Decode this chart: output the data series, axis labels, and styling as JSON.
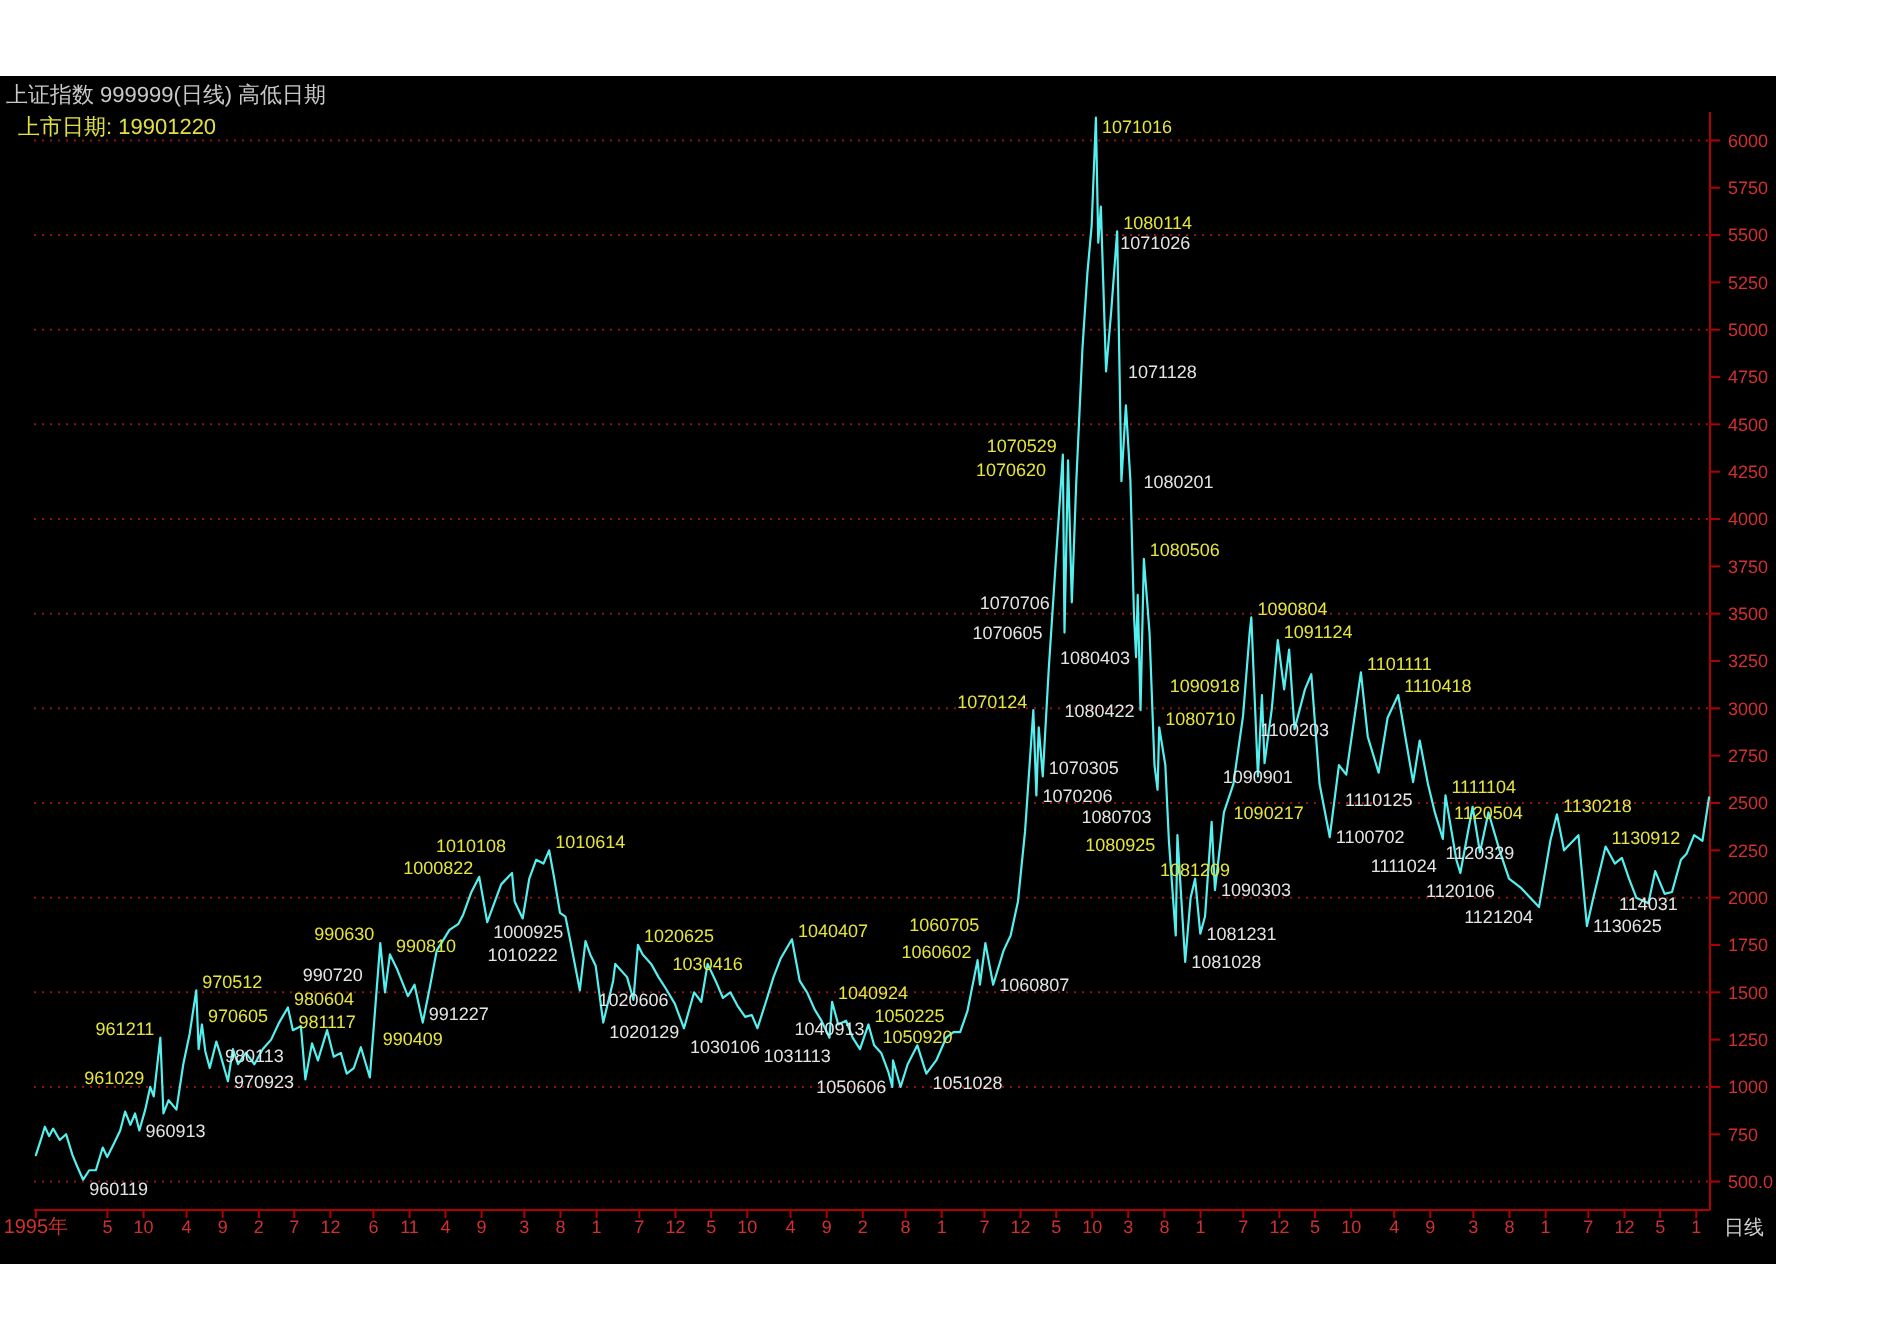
{
  "chart_data": {
    "type": "line",
    "title": "上证指数 999999(日线) 高低日期",
    "subtitle": "上市日期: 19901220",
    "x": [
      "1995-07-03",
      "1995-07-24",
      "1995-08-10",
      "1995-08-28",
      "1995-09-14",
      "1995-10-12",
      "1995-11-08",
      "1995-12-05",
      "1995-12-25",
      "1996-01-19",
      "1996-02-14",
      "1996-03-13",
      "1996-04-11",
      "1996-04-30",
      "1996-05-28",
      "1996-06-24",
      "1996-07-15",
      "1996-08-06",
      "1996-08-26",
      "1996-09-13",
      "1996-10-08",
      "1996-10-29",
      "1996-11-13",
      "1996-12-11",
      "1996-12-24",
      "1997-01-15",
      "1997-02-17",
      "1997-03-18",
      "1997-04-14",
      "1997-05-12",
      "1997-05-22",
      "1997-06-05",
      "1997-06-19",
      "1997-07-08",
      "1997-08-05",
      "1997-08-20",
      "1997-09-23",
      "1997-10-14",
      "1997-11-05",
      "1997-12-08",
      "1998-01-13",
      "1998-02-18",
      "1998-03-25",
      "1998-04-28",
      "1998-06-04",
      "1998-06-25",
      "1998-07-29",
      "1998-08-17",
      "1998-09-14",
      "1998-10-09",
      "1998-11-17",
      "1998-12-15",
      "1999-01-14",
      "1999-02-08",
      "1999-03-10",
      "1999-04-09",
      "1999-05-17",
      "1999-06-30",
      "1999-07-20",
      "1999-08-10",
      "1999-09-10",
      "1999-10-25",
      "1999-11-22",
      "1999-12-27",
      "2000-01-25",
      "2000-02-24",
      "2000-03-20",
      "2000-04-18",
      "2000-05-25",
      "2000-06-15",
      "2000-07-20",
      "2000-08-22",
      "2000-09-25",
      "2000-11-23",
      "2001-01-08",
      "2001-01-19",
      "2001-02-22",
      "2001-03-22",
      "2001-04-20",
      "2001-05-21",
      "2001-06-14",
      "2001-07-06",
      "2001-07-30",
      "2001-08-22",
      "2001-09-12",
      "2001-10-22",
      "2001-11-15",
      "2001-12-05",
      "2001-12-28",
      "2002-01-29",
      "2002-03-12",
      "2002-03-21",
      "2002-05-10",
      "2002-06-06",
      "2002-06-25",
      "2002-07-15",
      "2002-08-20",
      "2002-09-20",
      "2002-10-21",
      "2002-11-28",
      "2003-01-06",
      "2003-02-18",
      "2003-03-20",
      "2003-04-16",
      "2003-05-20",
      "2003-06-20",
      "2003-07-21",
      "2003-08-20",
      "2003-09-22",
      "2003-10-20",
      "2003-11-13",
      "2003-12-19",
      "2004-01-20",
      "2004-02-20",
      "2004-04-07",
      "2004-05-10",
      "2004-06-10",
      "2004-07-12",
      "2004-08-10",
      "2004-09-13",
      "2004-09-24",
      "2004-10-20",
      "2004-11-22",
      "2004-12-20",
      "2005-01-20",
      "2005-02-25",
      "2005-03-21",
      "2005-04-20",
      "2005-05-20",
      "2005-06-06",
      "2005-06-09",
      "2005-07-11",
      "2005-08-10",
      "2005-09-20",
      "2005-10-28",
      "2005-12-09",
      "2006-01-20",
      "2006-02-20",
      "2006-03-20",
      "2006-04-20",
      "2006-06-02",
      "2006-06-12",
      "2006-07-05",
      "2006-08-07",
      "2006-09-20",
      "2006-10-20",
      "2006-11-20",
      "2006-12-20",
      "2007-01-24",
      "2007-02-06",
      "2007-02-16",
      "2007-03-05",
      "2007-03-30",
      "2007-04-20",
      "2007-05-29",
      "2007-06-05",
      "2007-06-20",
      "2007-07-06",
      "2007-07-25",
      "2007-08-20",
      "2007-09-10",
      "2007-09-28",
      "2007-10-16",
      "2007-10-26",
      "2007-11-06",
      "2007-11-28",
      "2007-12-20",
      "2008-01-14",
      "2008-02-01",
      "2008-02-20",
      "2008-03-10",
      "2008-03-25",
      "2008-04-03",
      "2008-04-10",
      "2008-04-22",
      "2008-05-06",
      "2008-05-30",
      "2008-06-20",
      "2008-07-03",
      "2008-07-10",
      "2008-08-05",
      "2008-08-20",
      "2008-09-18",
      "2008-09-25",
      "2008-10-28",
      "2008-11-20",
      "2008-12-09",
      "2008-12-31",
      "2009-01-20",
      "2009-02-17",
      "2009-03-03",
      "2009-04-10",
      "2009-05-20",
      "2009-06-30",
      "2009-07-28",
      "2009-08-04",
      "2009-09-01",
      "2009-09-18",
      "2009-09-29",
      "2009-10-30",
      "2009-11-24",
      "2009-12-21",
      "2010-01-11",
      "2010-02-03",
      "2010-03-19",
      "2010-04-15",
      "2010-05-20",
      "2010-07-02",
      "2010-08-10",
      "2010-09-10",
      "2010-11-11",
      "2010-12-10",
      "2011-01-25",
      "2011-03-04",
      "2011-04-18",
      "2011-06-20",
      "2011-07-18",
      "2011-08-22",
      "2011-09-20",
      "2011-10-24",
      "2011-11-04",
      "2011-12-20",
      "2012-01-06",
      "2012-02-27",
      "2012-03-29",
      "2012-05-04",
      "2012-06-20",
      "2012-07-30",
      "2012-09-20",
      "2012-12-04",
      "2013-01-21",
      "2013-02-18",
      "2013-03-20",
      "2013-05-20",
      "2013-06-25",
      "2013-07-22",
      "2013-09-12",
      "2013-10-21",
      "2013-11-20",
      "2013-12-20",
      "2014-01-20",
      "2014-03-12",
      "2014-04-10",
      "2014-05-20",
      "2014-06-20",
      "2014-07-28",
      "2014-08-20",
      "2014-09-22",
      "2014-10-27",
      "2014-11-24"
    ],
    "series": [
      {
        "color": "#54f0f0",
        "values": [
          640,
          720,
          790,
          740,
          780,
          720,
          750,
          640,
          580,
          510,
          560,
          560,
          680,
          630,
          700,
          770,
          870,
          800,
          860,
          770,
          880,
          1000,
          950,
          1260,
          860,
          930,
          880,
          1120,
          1280,
          1510,
          1200,
          1330,
          1190,
          1100,
          1240,
          1180,
          1030,
          1200,
          1120,
          1180,
          1120,
          1200,
          1250,
          1340,
          1420,
          1300,
          1320,
          1040,
          1230,
          1140,
          1300,
          1160,
          1180,
          1070,
          1100,
          1210,
          1050,
          1760,
          1500,
          1700,
          1620,
          1480,
          1540,
          1340,
          1520,
          1720,
          1770,
          1830,
          1860,
          1910,
          2030,
          2110,
          1870,
          2070,
          2130,
          1980,
          1890,
          2100,
          2200,
          2180,
          2250,
          2100,
          1920,
          1900,
          1770,
          1510,
          1770,
          1700,
          1640,
          1340,
          1560,
          1650,
          1580,
          1460,
          1750,
          1700,
          1650,
          1580,
          1520,
          1440,
          1310,
          1500,
          1450,
          1650,
          1560,
          1470,
          1500,
          1430,
          1370,
          1380,
          1310,
          1450,
          1580,
          1680,
          1780,
          1560,
          1500,
          1410,
          1350,
          1260,
          1450,
          1330,
          1350,
          1260,
          1200,
          1330,
          1220,
          1180,
          1080,
          1000,
          1140,
          1000,
          1120,
          1220,
          1070,
          1140,
          1260,
          1290,
          1290,
          1400,
          1670,
          1540,
          1760,
          1540,
          1720,
          1800,
          1980,
          2350,
          2990,
          2540,
          2900,
          2640,
          3200,
          3600,
          4340,
          3400,
          4310,
          3560,
          4200,
          4900,
          5300,
          5550,
          6120,
          5460,
          5650,
          4780,
          5100,
          5520,
          4200,
          4600,
          4200,
          3500,
          3270,
          3600,
          2990,
          3790,
          3400,
          2700,
          2570,
          2900,
          2700,
          2300,
          1800,
          2330,
          1660,
          2000,
          2100,
          1810,
          1900,
          2400,
          2040,
          2450,
          2600,
          2960,
          3400,
          3480,
          2640,
          3070,
          2710,
          3000,
          3360,
          3100,
          3310,
          2890,
          3100,
          3180,
          2600,
          2320,
          2700,
          2650,
          3190,
          2850,
          2660,
          2950,
          3070,
          2610,
          2830,
          2600,
          2450,
          2310,
          2540,
          2200,
          2130,
          2480,
          2240,
          2450,
          2250,
          2100,
          2050,
          1950,
          2300,
          2440,
          2250,
          2330,
          1850,
          2000,
          2270,
          2180,
          2210,
          2100,
          2000,
          1970,
          2140,
          2020,
          2030,
          2200,
          2230,
          2330,
          2300,
          2530
        ]
      }
    ],
    "xlim": [
      "1995-06-25",
      "2014-11-28"
    ],
    "ylim": [
      350,
      6150
    ],
    "xticks": [
      {
        "value": "1995-07-03",
        "label": "1995年"
      },
      {
        "value": "1996-05",
        "label": "5"
      },
      {
        "value": "1996-10",
        "label": "10"
      },
      {
        "value": "1997-04",
        "label": "4"
      },
      {
        "value": "1997-09",
        "label": "9"
      },
      {
        "value": "1998-02",
        "label": "2"
      },
      {
        "value": "1998-07",
        "label": "7"
      },
      {
        "value": "1998-12",
        "label": "12"
      },
      {
        "value": "1999-06",
        "label": "6"
      },
      {
        "value": "1999-11",
        "label": "11"
      },
      {
        "value": "2000-04",
        "label": "4"
      },
      {
        "value": "2000-09",
        "label": "9"
      },
      {
        "value": "2001-03",
        "label": "3"
      },
      {
        "value": "2001-08",
        "label": "8"
      },
      {
        "value": "2002-01",
        "label": "1"
      },
      {
        "value": "2002-07",
        "label": "7"
      },
      {
        "value": "2002-12",
        "label": "12"
      },
      {
        "value": "2003-05",
        "label": "5"
      },
      {
        "value": "2003-10",
        "label": "10"
      },
      {
        "value": "2004-04",
        "label": "4"
      },
      {
        "value": "2004-09",
        "label": "9"
      },
      {
        "value": "2005-02",
        "label": "2"
      },
      {
        "value": "2005-08",
        "label": "8"
      },
      {
        "value": "2006-01",
        "label": "1"
      },
      {
        "value": "2006-07",
        "label": "7"
      },
      {
        "value": "2006-12",
        "label": "12"
      },
      {
        "value": "2007-05",
        "label": "5"
      },
      {
        "value": "2007-10",
        "label": "10"
      },
      {
        "value": "2008-03",
        "label": "3"
      },
      {
        "value": "2008-08",
        "label": "8"
      },
      {
        "value": "2009-01",
        "label": "1"
      },
      {
        "value": "2009-07",
        "label": "7"
      },
      {
        "value": "2009-12",
        "label": "12"
      },
      {
        "value": "2010-05",
        "label": "5"
      },
      {
        "value": "2010-10",
        "label": "10"
      },
      {
        "value": "2011-04",
        "label": "4"
      },
      {
        "value": "2011-09",
        "label": "9"
      },
      {
        "value": "2012-03",
        "label": "3"
      },
      {
        "value": "2012-08",
        "label": "8"
      },
      {
        "value": "2013-01",
        "label": "1"
      },
      {
        "value": "2013-07",
        "label": "7"
      },
      {
        "value": "2013-12",
        "label": "12"
      },
      {
        "value": "2014-05",
        "label": "5"
      },
      {
        "value": "2014-10",
        "label": "1"
      }
    ],
    "yticks": [
      {
        "value": 500,
        "label": "500.0"
      },
      750,
      1000,
      1250,
      1500,
      1750,
      2000,
      2250,
      2500,
      2750,
      3000,
      3250,
      3500,
      3750,
      4000,
      4250,
      4500,
      4750,
      5000,
      5250,
      5500,
      5750,
      6000
    ],
    "grid": "y",
    "annotations": [
      "日线",
      {
        "text": "960119",
        "x": "1996-01-19",
        "y": 510
      },
      {
        "text": "960913",
        "x": "1996-09-13",
        "y": 770
      },
      {
        "text": "961029",
        "x": "1996-10-29",
        "y": 1000
      },
      {
        "text": "961211",
        "x": "1996-12-11",
        "y": 1260
      },
      {
        "text": "970512",
        "x": "1997-05-12",
        "y": 1510
      },
      {
        "text": "970605",
        "x": "1997-06-05",
        "y": 1330
      },
      {
        "text": "970923",
        "x": "1997-09-23",
        "y": 1030
      },
      {
        "text": "980113",
        "x": "1998-01-13",
        "y": 1120
      },
      {
        "text": "980604",
        "x": "1998-06-04",
        "y": 1420
      },
      {
        "text": "981117",
        "x": "1998-11-17",
        "y": 1300
      },
      {
        "text": "990409",
        "x": "1999-04-09",
        "y": 1210
      },
      {
        "text": "990630",
        "x": "1999-06-30",
        "y": 1760
      },
      {
        "text": "990720",
        "x": "1999-07-20",
        "y": 1500
      },
      {
        "text": "990810",
        "x": "1999-08-10",
        "y": 1700
      },
      {
        "text": "991227",
        "x": "1999-12-27",
        "y": 1340
      },
      {
        "text": "1000822",
        "x": "2000-08-22",
        "y": 2110
      },
      {
        "text": "1000925",
        "x": "2000-09-25",
        "y": 1870
      },
      {
        "text": "1010108",
        "x": "2001-01-08",
        "y": 2130
      },
      {
        "text": "1010222",
        "x": "2001-02-22",
        "y": 1890
      },
      {
        "text": "1010614",
        "x": "2001-06-14",
        "y": 2250
      },
      {
        "text": "1020129",
        "x": "2002-01-29",
        "y": 1340
      },
      {
        "text": "1020606",
        "x": "2002-06-06",
        "y": 1460
      },
      {
        "text": "1020625",
        "x": "2002-06-25",
        "y": 1750
      },
      {
        "text": "1030106",
        "x": "2003-01-06",
        "y": 1310
      },
      {
        "text": "1030416",
        "x": "2003-04-16",
        "y": 1650
      },
      {
        "text": "1031113",
        "x": "2003-11-13",
        "y": 1310
      },
      {
        "text": "1040407",
        "x": "2004-04-07",
        "y": 1780
      },
      {
        "text": "1040913",
        "x": "2004-09-13",
        "y": 1260
      },
      {
        "text": "1040924",
        "x": "2004-09-24",
        "y": 1450
      },
      {
        "text": "1050225",
        "x": "2005-02-25",
        "y": 1330
      },
      {
        "text": "1050606",
        "x": "2005-06-06",
        "y": 1000
      },
      {
        "text": "1050920",
        "x": "2005-09-20",
        "y": 1220
      },
      {
        "text": "1051028",
        "x": "2005-10-28",
        "y": 1070
      },
      {
        "text": "1060602",
        "x": "2006-06-02",
        "y": 1670
      },
      {
        "text": "1060705",
        "x": "2006-07-05",
        "y": 1760
      },
      {
        "text": "1060807",
        "x": "2006-08-07",
        "y": 1540
      },
      {
        "text": "1070124",
        "x": "2007-01-24",
        "y": 2990
      },
      {
        "text": "1070206",
        "x": "2007-02-06",
        "y": 2540
      },
      {
        "text": "1070305",
        "x": "2007-03-05",
        "y": 2640
      },
      {
        "text": "1070529",
        "x": "2007-05-29",
        "y": 4340
      },
      {
        "text": "1070605",
        "x": "2007-06-05",
        "y": 3400
      },
      {
        "text": "1070620",
        "x": "2007-06-20",
        "y": 4310
      },
      {
        "text": "1070706",
        "x": "2007-07-06",
        "y": 3560
      },
      {
        "text": "1071016",
        "x": "2007-10-16",
        "y": 6120
      },
      {
        "text": "1071026",
        "x": "2007-10-26",
        "y": 5460
      },
      {
        "text": "1071128",
        "x": "2007-11-28",
        "y": 4780
      },
      {
        "text": "1080114",
        "x": "2008-01-14",
        "y": 5520
      },
      {
        "text": "1080201",
        "x": "2008-02-01",
        "y": 4200
      },
      {
        "text": "1080403",
        "x": "2008-04-03",
        "y": 3270
      },
      {
        "text": "1080422",
        "x": "2008-04-22",
        "y": 2990
      },
      {
        "text": "1080506",
        "x": "2008-05-06",
        "y": 3790
      },
      {
        "text": "1080703",
        "x": "2008-07-03",
        "y": 2570
      },
      {
        "text": "1080710",
        "x": "2008-07-10",
        "y": 2900
      },
      {
        "text": "1080925",
        "x": "2008-09-25",
        "y": 2330
      },
      {
        "text": "1081028",
        "x": "2008-10-28",
        "y": 1660
      },
      {
        "text": "1081209",
        "x": "2008-12-09",
        "y": 2100
      },
      {
        "text": "1081231",
        "x": "2008-12-31",
        "y": 1810
      },
      {
        "text": "1090217",
        "x": "2009-02-17",
        "y": 2400
      },
      {
        "text": "1090303",
        "x": "2009-03-03",
        "y": 2040
      },
      {
        "text": "1090804",
        "x": "2009-08-04",
        "y": 3480
      },
      {
        "text": "1090901",
        "x": "2009-09-01",
        "y": 2640
      },
      {
        "text": "1090918",
        "x": "2009-09-18",
        "y": 3070
      },
      {
        "text": "1091124",
        "x": "2009-11-24",
        "y": 3360
      },
      {
        "text": "1100203",
        "x": "2010-02-03",
        "y": 2890
      },
      {
        "text": "1100702",
        "x": "2010-07-02",
        "y": 2320
      },
      {
        "text": "1101111",
        "x": "2010-11-11",
        "y": 3190
      },
      {
        "text": "1110125",
        "x": "2011-01-25",
        "y": 2660
      },
      {
        "text": "1110418",
        "x": "2011-04-18",
        "y": 3070
      },
      {
        "text": "1111024",
        "x": "2011-10-24",
        "y": 2310
      },
      {
        "text": "1111104",
        "x": "2011-11-04",
        "y": 2540
      },
      {
        "text": "1120106",
        "x": "2012-01-06",
        "y": 2130
      },
      {
        "text": "1120329",
        "x": "2012-03-29",
        "y": 2240
      },
      {
        "text": "1120504",
        "x": "2012-05-04",
        "y": 2450
      },
      {
        "text": "1121204",
        "x": "2012-12-04",
        "y": 1950
      },
      {
        "text": "1130218",
        "x": "2013-02-18",
        "y": 2440
      },
      {
        "text": "1130625",
        "x": "2013-06-25",
        "y": 1850
      },
      {
        "text": "1130912",
        "x": "2013-09-12",
        "y": 2270
      },
      {
        "text": "114031",
        "x": "2014-03-12",
        "y": 1970
      }
    ]
  }
}
